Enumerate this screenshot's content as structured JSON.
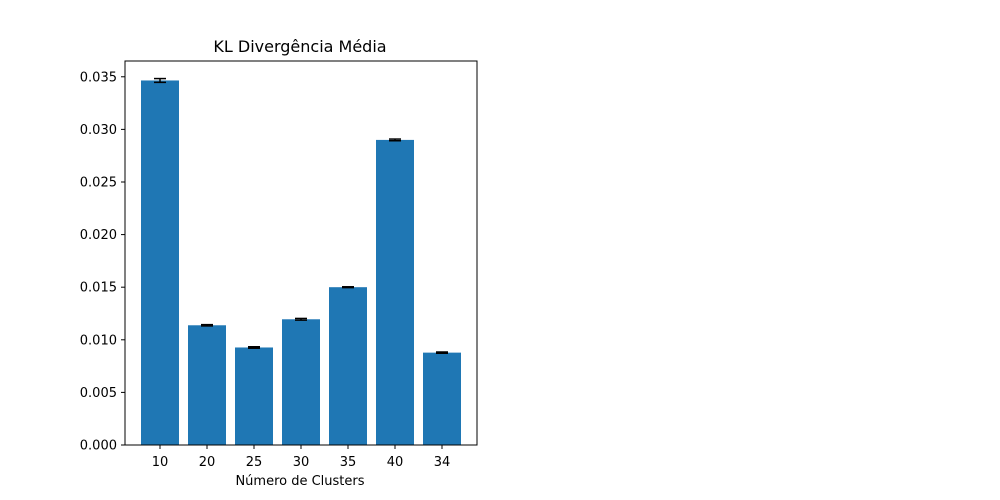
{
  "chart_data": {
    "type": "bar",
    "title": "KL Divergência Média",
    "xlabel": "Número de Clusters",
    "ylabel": "",
    "categories": [
      "10",
      "20",
      "25",
      "30",
      "35",
      "40",
      "34"
    ],
    "values": [
      0.03465,
      0.01138,
      0.00927,
      0.01195,
      0.015,
      0.029,
      0.00878
    ],
    "errors": [
      0.00018,
      6e-05,
      7e-05,
      8e-05,
      4e-05,
      8e-05,
      6e-05
    ],
    "ylim": [
      0,
      0.0365
    ],
    "yticks": [
      "0.000",
      "0.005",
      "0.010",
      "0.015",
      "0.020",
      "0.025",
      "0.030",
      "0.035"
    ],
    "ytick_values": [
      0,
      0.005,
      0.01,
      0.015,
      0.02,
      0.025,
      0.03,
      0.035
    ],
    "grid": false,
    "bar_color": "#1f77b4",
    "error_color": "#000000"
  }
}
